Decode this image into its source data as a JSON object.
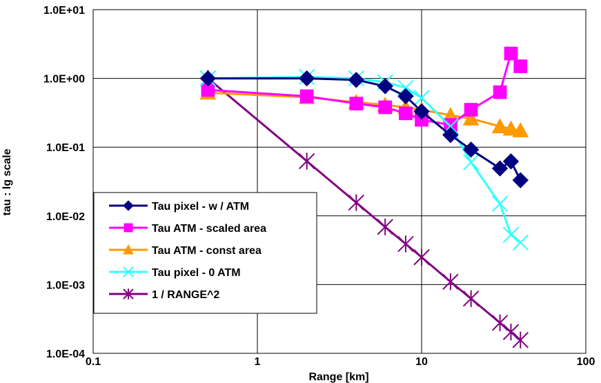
{
  "chart_data": {
    "type": "line",
    "xlabel": "Range [km]",
    "ylabel": "tau : lg scale",
    "x_scale": "log",
    "y_scale": "log",
    "xlim": [
      0.1,
      100
    ],
    "ylim": [
      0.0001,
      10
    ],
    "x_ticks": [
      {
        "value": 0.1,
        "label": "0.1"
      },
      {
        "value": 1,
        "label": "1"
      },
      {
        "value": 10,
        "label": "10"
      },
      {
        "value": 100,
        "label": "100"
      }
    ],
    "y_ticks": [
      {
        "value": 0.0001,
        "label": "1.0E-04"
      },
      {
        "value": 0.001,
        "label": "1.0E-03"
      },
      {
        "value": 0.01,
        "label": "1.0E-02"
      },
      {
        "value": 0.1,
        "label": "1.0E-01"
      },
      {
        "value": 1,
        "label": "1.0E+00"
      },
      {
        "value": 10,
        "label": "1.0E+01"
      }
    ],
    "grid": true,
    "legend_position": "lower-left",
    "series": [
      {
        "name": "Tau pixel - w / ATM",
        "color": "#000080",
        "marker": "diamond",
        "x": [
          0.5,
          2,
          4,
          6,
          8,
          10,
          15,
          20,
          30,
          35,
          40
        ],
        "y": [
          1.0,
          1.0,
          0.95,
          0.77,
          0.55,
          0.33,
          0.15,
          0.092,
          0.049,
          0.062,
          0.033
        ]
      },
      {
        "name": "Tau ATM - scaled area",
        "color": "#FF00FF",
        "marker": "square",
        "x": [
          0.5,
          2,
          4,
          6,
          8,
          10,
          15,
          20,
          30,
          35,
          40
        ],
        "y": [
          0.68,
          0.55,
          0.43,
          0.38,
          0.31,
          0.25,
          0.21,
          0.35,
          0.63,
          2.3,
          1.5
        ]
      },
      {
        "name": "Tau ATM - const area",
        "color": "#FF9900",
        "marker": "triangle",
        "x": [
          0.5,
          2,
          4,
          6,
          8,
          10,
          15,
          20,
          30,
          35,
          40
        ],
        "y": [
          0.62,
          0.53,
          0.45,
          0.41,
          0.38,
          0.35,
          0.29,
          0.26,
          0.2,
          0.185,
          0.175
        ]
      },
      {
        "name": "Tau pixel - 0 ATM",
        "color": "#33FFFF",
        "marker": "x",
        "x": [
          0.5,
          2,
          4,
          6,
          8,
          10,
          15,
          20,
          30,
          35,
          40
        ],
        "y": [
          1.0,
          1.05,
          1.0,
          0.88,
          0.73,
          0.52,
          0.2,
          0.06,
          0.015,
          0.0053,
          0.0041
        ]
      },
      {
        "name": "1 / RANGE^2",
        "color": "#800080",
        "marker": "star",
        "x": [
          0.5,
          2,
          4,
          6,
          8,
          10,
          15,
          20,
          30,
          35,
          40
        ],
        "y": [
          1.0,
          0.0625,
          0.0156,
          0.0069,
          0.0039,
          0.0025,
          0.0011,
          0.000625,
          0.000278,
          0.000204,
          0.000156
        ]
      }
    ]
  }
}
